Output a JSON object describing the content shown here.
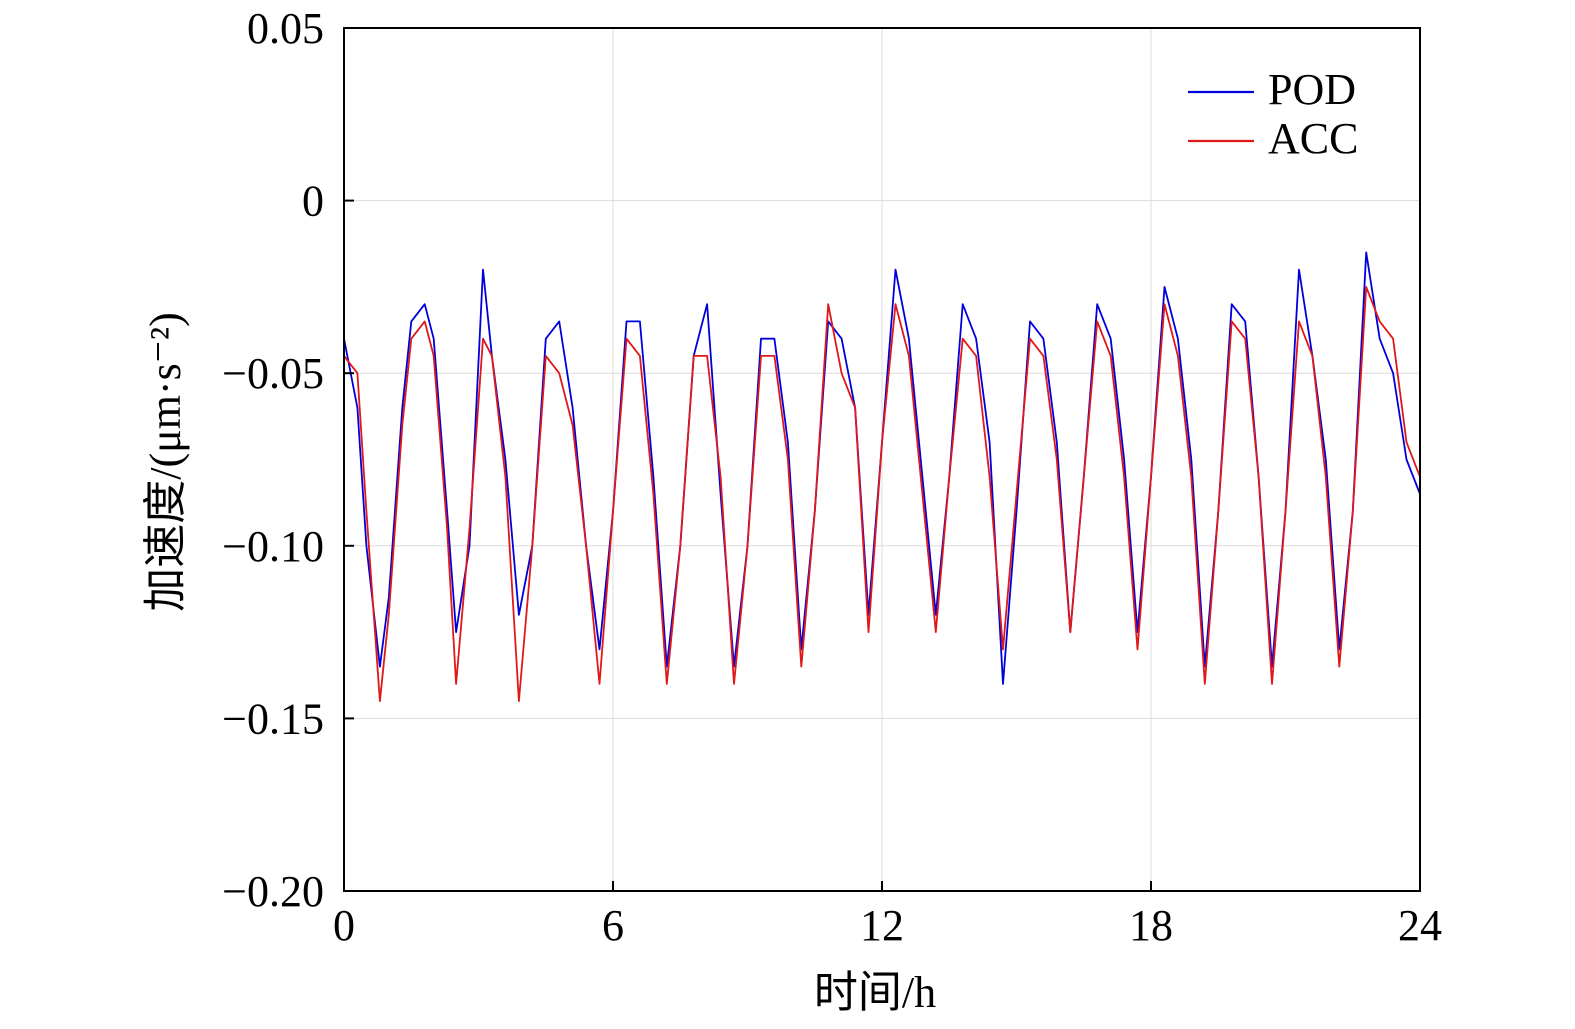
{
  "chart_data": {
    "type": "line",
    "xlabel": "时间/h",
    "ylabel": "加速度/(μm·s⁻²)",
    "xlim": [
      0,
      24
    ],
    "ylim": [
      -0.2,
      0.05
    ],
    "xticks": [
      0,
      6,
      12,
      18,
      24
    ],
    "xtick_labels": [
      "0",
      "6",
      "12",
      "18",
      "24"
    ],
    "yticks": [
      0.05,
      0,
      -0.05,
      -0.1,
      -0.15,
      -0.2
    ],
    "ytick_labels": [
      "0.05",
      "0",
      "−0.05",
      "−0.10",
      "−0.15",
      "−0.20"
    ],
    "grid": true,
    "legend": "top-right",
    "series_colors": {
      "POD": "#0000dd",
      "ACC": "#e01818"
    },
    "series": [
      {
        "name": "POD",
        "x": [
          0,
          0.3,
          0.5,
          0.8,
          1.0,
          1.3,
          1.5,
          1.8,
          2.0,
          2.3,
          2.5,
          2.8,
          3.1,
          3.3,
          3.6,
          3.9,
          4.2,
          4.5,
          4.8,
          5.1,
          5.4,
          5.7,
          6.0,
          6.3,
          6.6,
          6.9,
          7.2,
          7.5,
          7.8,
          8.1,
          8.4,
          8.7,
          9.0,
          9.3,
          9.6,
          9.9,
          10.2,
          10.5,
          10.8,
          11.1,
          11.4,
          11.7,
          12.0,
          12.3,
          12.6,
          12.9,
          13.2,
          13.5,
          13.8,
          14.1,
          14.4,
          14.7,
          15.0,
          15.3,
          15.6,
          15.9,
          16.2,
          16.5,
          16.8,
          17.1,
          17.4,
          17.7,
          18.0,
          18.3,
          18.6,
          18.9,
          19.2,
          19.5,
          19.8,
          20.1,
          20.4,
          20.7,
          21.0,
          21.3,
          21.6,
          21.9,
          22.2,
          22.5,
          22.8,
          23.1,
          23.4,
          23.7,
          24.0
        ],
        "y": [
          -0.04,
          -0.06,
          -0.1,
          -0.135,
          -0.115,
          -0.06,
          -0.035,
          -0.03,
          -0.04,
          -0.09,
          -0.125,
          -0.1,
          -0.02,
          -0.045,
          -0.075,
          -0.12,
          -0.1,
          -0.04,
          -0.035,
          -0.06,
          -0.1,
          -0.13,
          -0.09,
          -0.035,
          -0.035,
          -0.08,
          -0.135,
          -0.1,
          -0.045,
          -0.03,
          -0.085,
          -0.135,
          -0.1,
          -0.04,
          -0.04,
          -0.07,
          -0.13,
          -0.09,
          -0.035,
          -0.04,
          -0.06,
          -0.12,
          -0.07,
          -0.02,
          -0.04,
          -0.08,
          -0.12,
          -0.08,
          -0.03,
          -0.04,
          -0.07,
          -0.14,
          -0.09,
          -0.035,
          -0.04,
          -0.07,
          -0.125,
          -0.08,
          -0.03,
          -0.04,
          -0.075,
          -0.125,
          -0.08,
          -0.025,
          -0.04,
          -0.075,
          -0.135,
          -0.09,
          -0.03,
          -0.035,
          -0.08,
          -0.135,
          -0.09,
          -0.02,
          -0.045,
          -0.075,
          -0.13,
          -0.09,
          -0.015,
          -0.04,
          -0.05,
          -0.075,
          -0.085
        ]
      },
      {
        "name": "ACC",
        "x": [
          0,
          0.3,
          0.5,
          0.8,
          1.0,
          1.3,
          1.5,
          1.8,
          2.0,
          2.3,
          2.5,
          2.8,
          3.1,
          3.3,
          3.6,
          3.9,
          4.2,
          4.5,
          4.8,
          5.1,
          5.4,
          5.7,
          6.0,
          6.3,
          6.6,
          6.9,
          7.2,
          7.5,
          7.8,
          8.1,
          8.4,
          8.7,
          9.0,
          9.3,
          9.6,
          9.9,
          10.2,
          10.5,
          10.8,
          11.1,
          11.4,
          11.7,
          12.0,
          12.3,
          12.6,
          12.9,
          13.2,
          13.5,
          13.8,
          14.1,
          14.4,
          14.7,
          15.0,
          15.3,
          15.6,
          15.9,
          16.2,
          16.5,
          16.8,
          17.1,
          17.4,
          17.7,
          18.0,
          18.3,
          18.6,
          18.9,
          19.2,
          19.5,
          19.8,
          20.1,
          20.4,
          20.7,
          21.0,
          21.3,
          21.6,
          21.9,
          22.2,
          22.5,
          22.8,
          23.1,
          23.4,
          23.7,
          24.0
        ],
        "y": [
          -0.045,
          -0.05,
          -0.09,
          -0.145,
          -0.12,
          -0.065,
          -0.04,
          -0.035,
          -0.045,
          -0.095,
          -0.14,
          -0.095,
          -0.04,
          -0.045,
          -0.08,
          -0.145,
          -0.1,
          -0.045,
          -0.05,
          -0.065,
          -0.1,
          -0.14,
          -0.09,
          -0.04,
          -0.045,
          -0.085,
          -0.14,
          -0.1,
          -0.045,
          -0.045,
          -0.08,
          -0.14,
          -0.1,
          -0.045,
          -0.045,
          -0.075,
          -0.135,
          -0.09,
          -0.03,
          -0.05,
          -0.06,
          -0.125,
          -0.07,
          -0.03,
          -0.045,
          -0.085,
          -0.125,
          -0.08,
          -0.04,
          -0.045,
          -0.08,
          -0.13,
          -0.085,
          -0.04,
          -0.045,
          -0.075,
          -0.125,
          -0.08,
          -0.035,
          -0.045,
          -0.08,
          -0.13,
          -0.08,
          -0.03,
          -0.045,
          -0.08,
          -0.14,
          -0.09,
          -0.035,
          -0.04,
          -0.08,
          -0.14,
          -0.09,
          -0.035,
          -0.045,
          -0.08,
          -0.135,
          -0.09,
          -0.025,
          -0.035,
          -0.04,
          -0.07,
          -0.08
        ]
      }
    ]
  }
}
